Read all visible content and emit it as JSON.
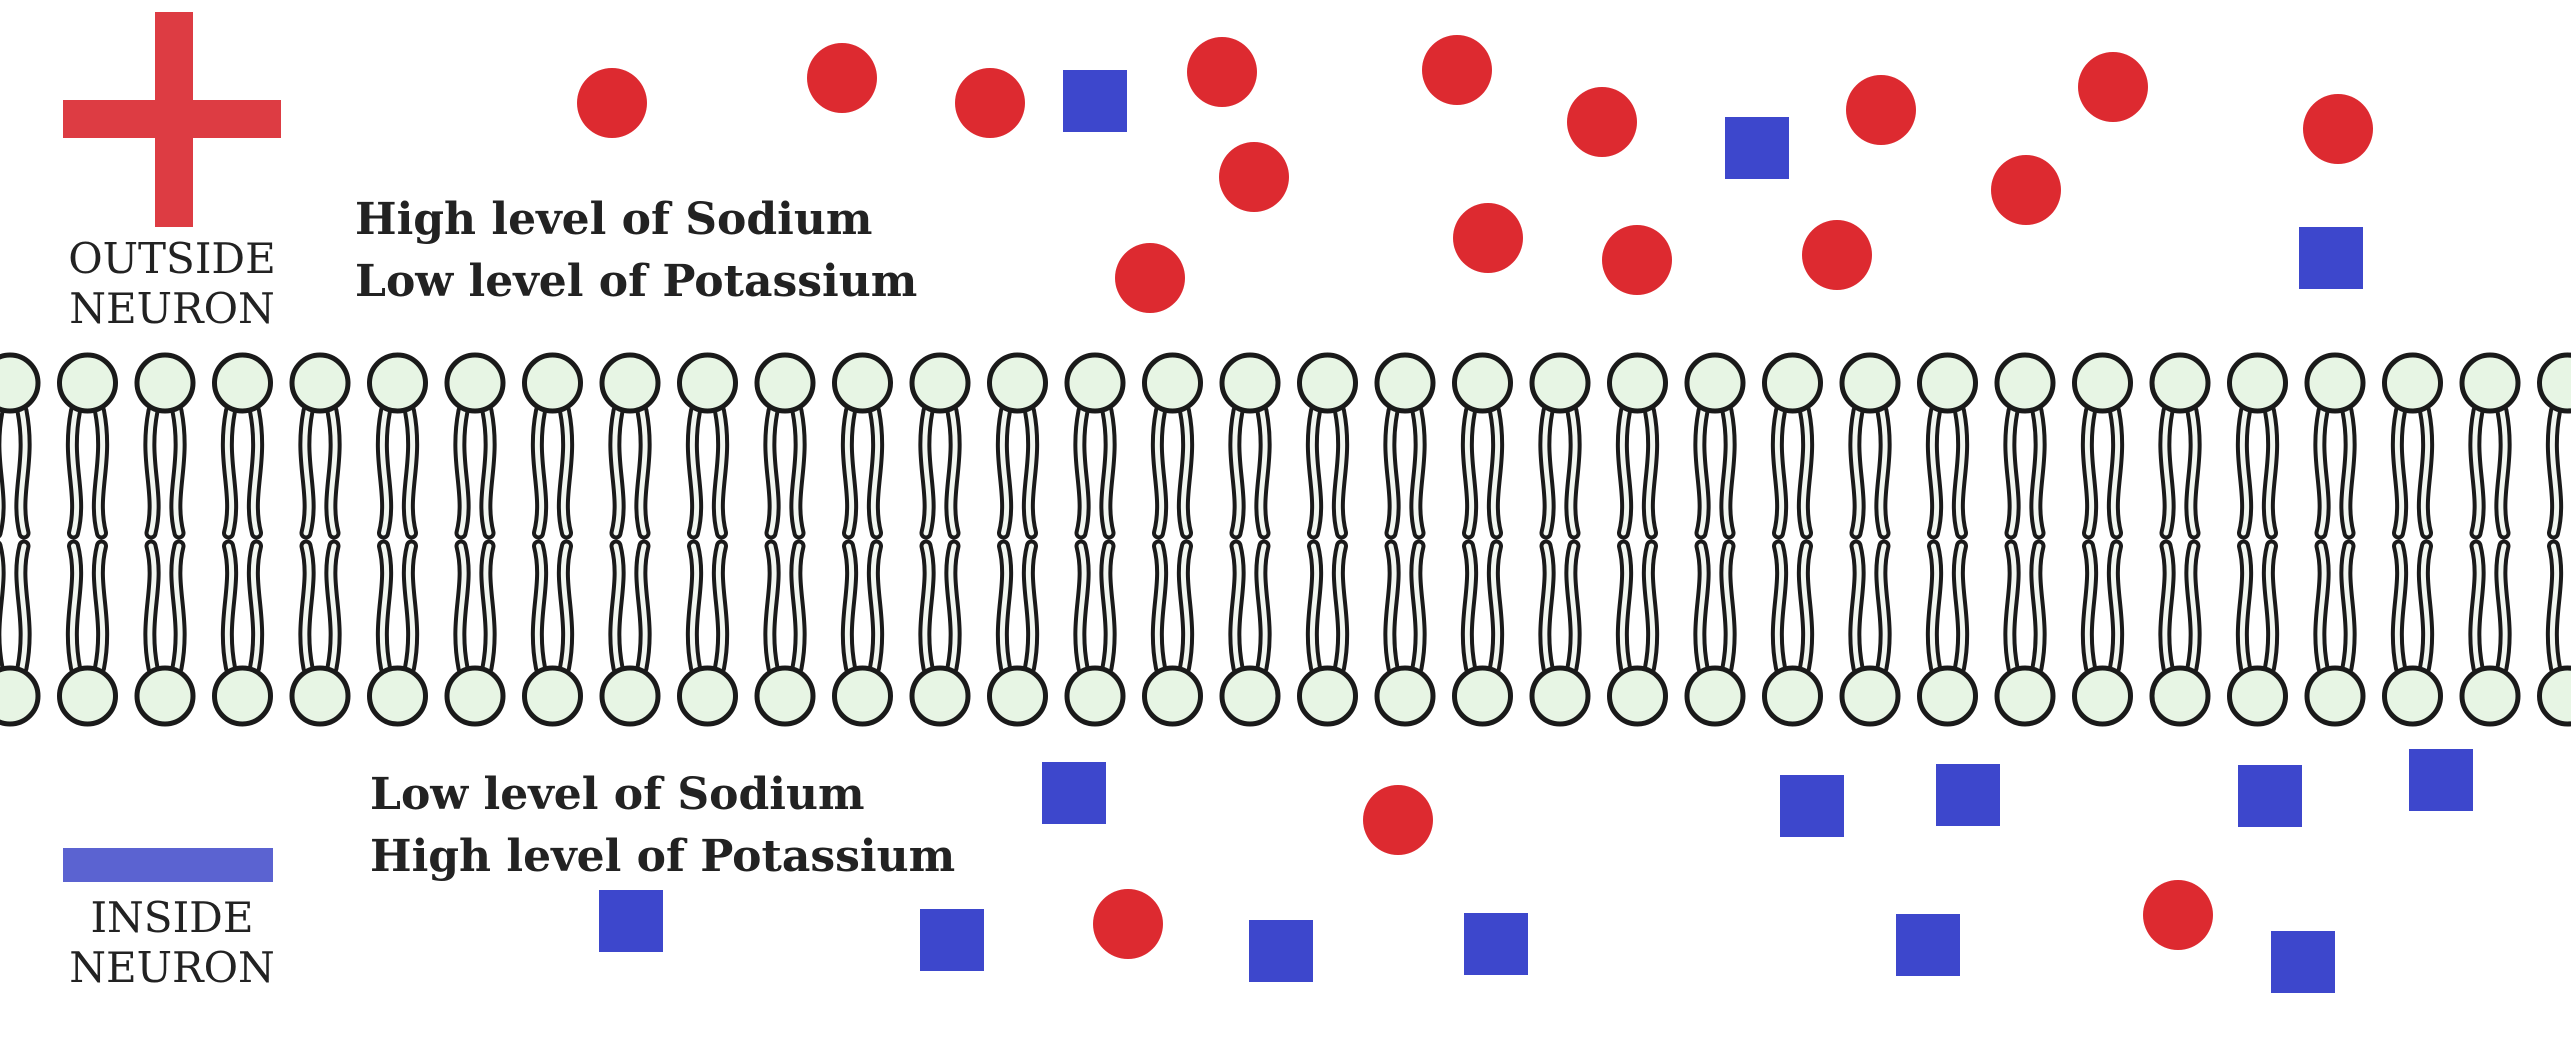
{
  "outside": {
    "sign": "+",
    "label_line1": "OUTSIDE",
    "label_line2": "NEURON",
    "text_line1": "High level of Sodium",
    "text_line2": "Low level of Potassium"
  },
  "inside": {
    "sign": "−",
    "label_line1": "INSIDE",
    "label_line2": "NEURON",
    "text_line1": "Low level of Sodium",
    "text_line2": "High level of Potassium"
  },
  "legend": {
    "sodium_shape": "circle",
    "potassium_shape": "square"
  },
  "colors": {
    "sodium": "#dd2a30",
    "potassium": "#3d47cc",
    "plus_sign": "#dd3c43",
    "minus_sign": "#5b63d1",
    "membrane_head": "#e7f5e4",
    "membrane_stroke": "#1a1a1a"
  }
}
